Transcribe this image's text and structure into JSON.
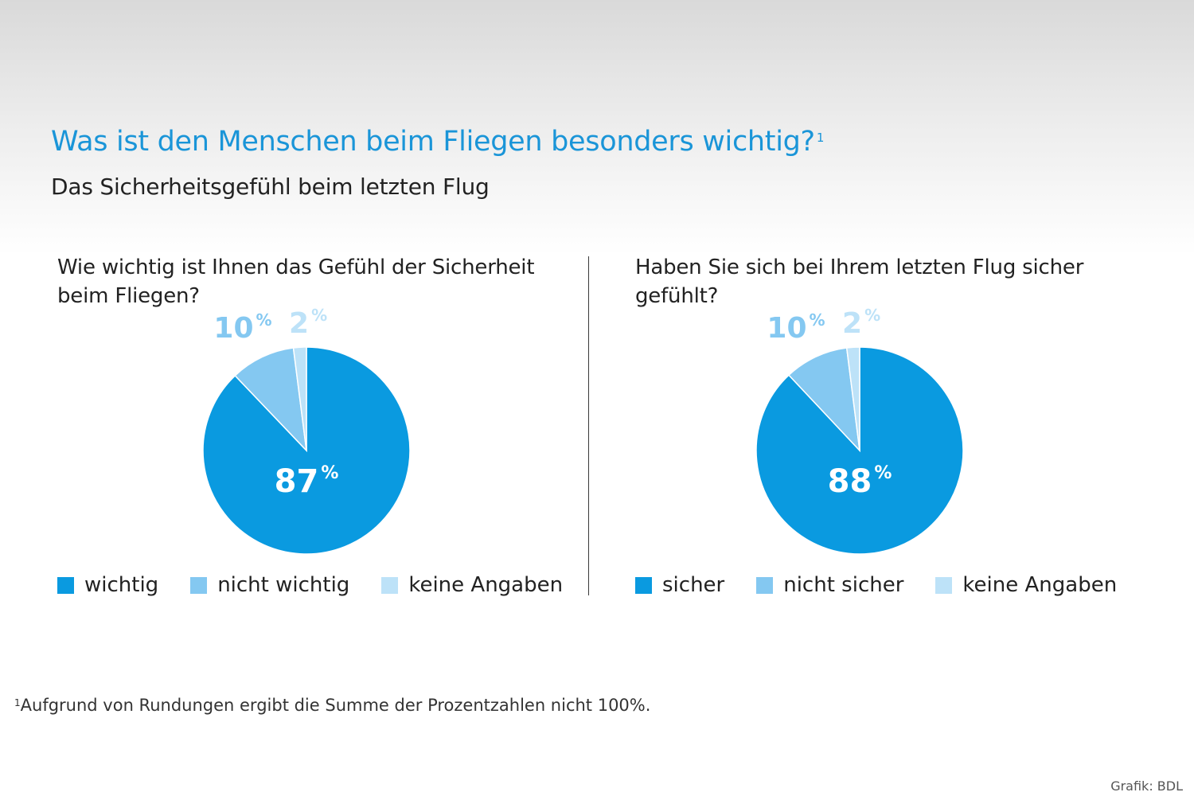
{
  "header": {
    "title": "Was ist den Menschen beim Fliegen besonders wichtig?",
    "title_footnote_mark": "1",
    "subtitle": "Das Sicherheitsgefühl beim letzten Flug"
  },
  "colors": {
    "primary": "#0a9ae0",
    "secondary": "#84c8f1",
    "tertiary": "#bde2f8"
  },
  "chart_data": [
    {
      "type": "pie",
      "question": "Wie wichtig ist Ihnen das Gefühl der Sicherheit beim Fliegen?",
      "categories": [
        "wichtig",
        "nicht wichtig",
        "keine Angaben"
      ],
      "values": [
        87,
        10,
        2
      ],
      "labels": [
        "87",
        "10",
        "2"
      ],
      "unit": "%",
      "legend": "bottom"
    },
    {
      "type": "pie",
      "question": "Haben Sie sich bei Ihrem letzten Flug sicher gefühlt?",
      "categories": [
        "sicher",
        "nicht sicher",
        "keine Angaben"
      ],
      "values": [
        88,
        10,
        2
      ],
      "labels": [
        "88",
        "10",
        "2"
      ],
      "unit": "%",
      "legend": "bottom"
    }
  ],
  "footnote": {
    "mark": "1",
    "text": "Aufgrund von Rundungen ergibt die Summe der Prozentzahlen nicht 100%."
  },
  "credit": "Grafik: BDL"
}
